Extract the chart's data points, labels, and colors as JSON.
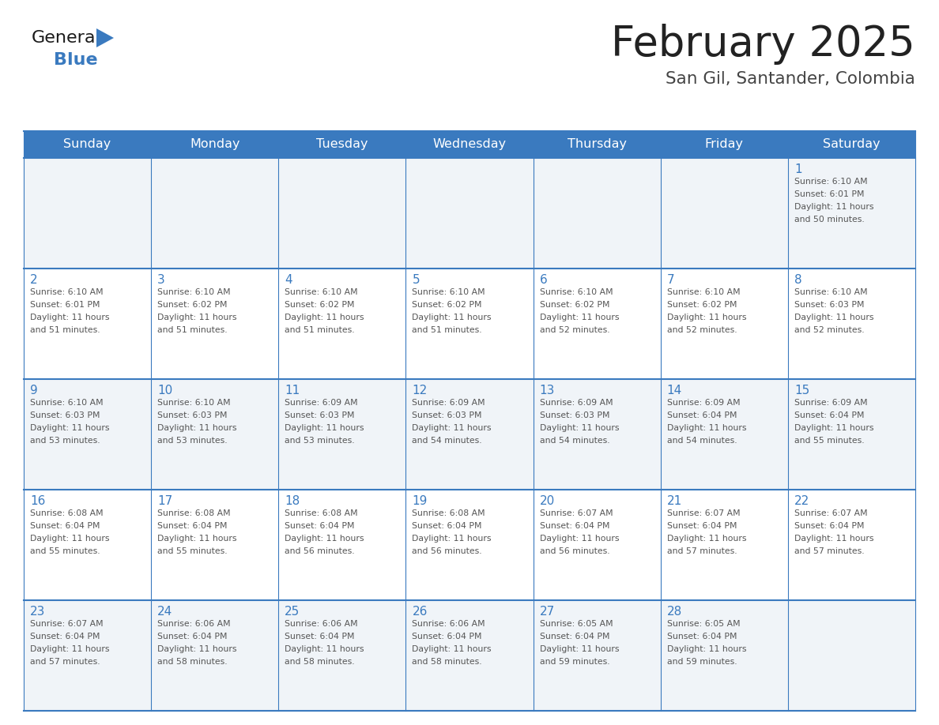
{
  "title": "February 2025",
  "subtitle": "San Gil, Santander, Colombia",
  "header_bg": "#3a7abf",
  "header_text_color": "#ffffff",
  "border_color": "#3a7abf",
  "day_number_color": "#3a7abf",
  "text_color": "#555555",
  "title_color": "#222222",
  "subtitle_color": "#444444",
  "weekdays": [
    "Sunday",
    "Monday",
    "Tuesday",
    "Wednesday",
    "Thursday",
    "Friday",
    "Saturday"
  ],
  "row0_bg": "#f0f4f8",
  "row1_bg": "#ffffff",
  "weeks": [
    [
      {
        "day": "",
        "info": ""
      },
      {
        "day": "",
        "info": ""
      },
      {
        "day": "",
        "info": ""
      },
      {
        "day": "",
        "info": ""
      },
      {
        "day": "",
        "info": ""
      },
      {
        "day": "",
        "info": ""
      },
      {
        "day": "1",
        "info": "Sunrise: 6:10 AM\nSunset: 6:01 PM\nDaylight: 11 hours\nand 50 minutes."
      }
    ],
    [
      {
        "day": "2",
        "info": "Sunrise: 6:10 AM\nSunset: 6:01 PM\nDaylight: 11 hours\nand 51 minutes."
      },
      {
        "day": "3",
        "info": "Sunrise: 6:10 AM\nSunset: 6:02 PM\nDaylight: 11 hours\nand 51 minutes."
      },
      {
        "day": "4",
        "info": "Sunrise: 6:10 AM\nSunset: 6:02 PM\nDaylight: 11 hours\nand 51 minutes."
      },
      {
        "day": "5",
        "info": "Sunrise: 6:10 AM\nSunset: 6:02 PM\nDaylight: 11 hours\nand 51 minutes."
      },
      {
        "day": "6",
        "info": "Sunrise: 6:10 AM\nSunset: 6:02 PM\nDaylight: 11 hours\nand 52 minutes."
      },
      {
        "day": "7",
        "info": "Sunrise: 6:10 AM\nSunset: 6:02 PM\nDaylight: 11 hours\nand 52 minutes."
      },
      {
        "day": "8",
        "info": "Sunrise: 6:10 AM\nSunset: 6:03 PM\nDaylight: 11 hours\nand 52 minutes."
      }
    ],
    [
      {
        "day": "9",
        "info": "Sunrise: 6:10 AM\nSunset: 6:03 PM\nDaylight: 11 hours\nand 53 minutes."
      },
      {
        "day": "10",
        "info": "Sunrise: 6:10 AM\nSunset: 6:03 PM\nDaylight: 11 hours\nand 53 minutes."
      },
      {
        "day": "11",
        "info": "Sunrise: 6:09 AM\nSunset: 6:03 PM\nDaylight: 11 hours\nand 53 minutes."
      },
      {
        "day": "12",
        "info": "Sunrise: 6:09 AM\nSunset: 6:03 PM\nDaylight: 11 hours\nand 54 minutes."
      },
      {
        "day": "13",
        "info": "Sunrise: 6:09 AM\nSunset: 6:03 PM\nDaylight: 11 hours\nand 54 minutes."
      },
      {
        "day": "14",
        "info": "Sunrise: 6:09 AM\nSunset: 6:04 PM\nDaylight: 11 hours\nand 54 minutes."
      },
      {
        "day": "15",
        "info": "Sunrise: 6:09 AM\nSunset: 6:04 PM\nDaylight: 11 hours\nand 55 minutes."
      }
    ],
    [
      {
        "day": "16",
        "info": "Sunrise: 6:08 AM\nSunset: 6:04 PM\nDaylight: 11 hours\nand 55 minutes."
      },
      {
        "day": "17",
        "info": "Sunrise: 6:08 AM\nSunset: 6:04 PM\nDaylight: 11 hours\nand 55 minutes."
      },
      {
        "day": "18",
        "info": "Sunrise: 6:08 AM\nSunset: 6:04 PM\nDaylight: 11 hours\nand 56 minutes."
      },
      {
        "day": "19",
        "info": "Sunrise: 6:08 AM\nSunset: 6:04 PM\nDaylight: 11 hours\nand 56 minutes."
      },
      {
        "day": "20",
        "info": "Sunrise: 6:07 AM\nSunset: 6:04 PM\nDaylight: 11 hours\nand 56 minutes."
      },
      {
        "day": "21",
        "info": "Sunrise: 6:07 AM\nSunset: 6:04 PM\nDaylight: 11 hours\nand 57 minutes."
      },
      {
        "day": "22",
        "info": "Sunrise: 6:07 AM\nSunset: 6:04 PM\nDaylight: 11 hours\nand 57 minutes."
      }
    ],
    [
      {
        "day": "23",
        "info": "Sunrise: 6:07 AM\nSunset: 6:04 PM\nDaylight: 11 hours\nand 57 minutes."
      },
      {
        "day": "24",
        "info": "Sunrise: 6:06 AM\nSunset: 6:04 PM\nDaylight: 11 hours\nand 58 minutes."
      },
      {
        "day": "25",
        "info": "Sunrise: 6:06 AM\nSunset: 6:04 PM\nDaylight: 11 hours\nand 58 minutes."
      },
      {
        "day": "26",
        "info": "Sunrise: 6:06 AM\nSunset: 6:04 PM\nDaylight: 11 hours\nand 58 minutes."
      },
      {
        "day": "27",
        "info": "Sunrise: 6:05 AM\nSunset: 6:04 PM\nDaylight: 11 hours\nand 59 minutes."
      },
      {
        "day": "28",
        "info": "Sunrise: 6:05 AM\nSunset: 6:04 PM\nDaylight: 11 hours\nand 59 minutes."
      },
      {
        "day": "",
        "info": ""
      }
    ]
  ],
  "logo_general_color": "#1a1a1a",
  "logo_blue_color": "#3a7abf",
  "logo_triangle_color": "#3a7abf"
}
